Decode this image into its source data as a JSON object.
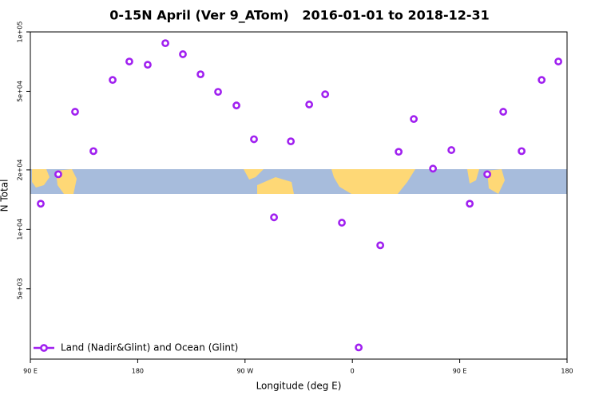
{
  "chart_data": {
    "type": "scatter",
    "title": "0-15N April (Ver 9_ATom)   2016-01-01 to 2018-12-31",
    "x_label": "Longitude (deg E)",
    "y_label": "N Total",
    "log_y": true,
    "legend": "bottom-left",
    "xlim": [
      90,
      540
    ],
    "xticks": [
      {
        "value": 90,
        "label": "90 E"
      },
      180,
      {
        "value": 270,
        "label": "90 W"
      },
      {
        "value": 360,
        "label": "0"
      },
      {
        "value": 450,
        "label": "90 E"
      },
      {
        "value": 540,
        "label": "180"
      }
    ],
    "ylim": [
      2200,
      100000
    ],
    "yticks": [
      {
        "value": 5000,
        "label": "5e+03"
      },
      {
        "value": 10000,
        "label": "1e+04"
      },
      {
        "value": 20000,
        "label": "2e+04"
      },
      {
        "value": 50000,
        "label": "5e+04"
      },
      {
        "value": 100000,
        "label": "1e+05"
      }
    ],
    "series": [
      {
        "name": "Land (Nadir&Glint) and Ocean (Glint)",
        "color": "#a020f0",
        "x": [
          98.7,
          113.4,
          127.5,
          142.9,
          159,
          173,
          188.4,
          203.2,
          217.9,
          232.7,
          247.4,
          262.8,
          277.5,
          294.3,
          308.4,
          323.8,
          337.2,
          351.2,
          365.3,
          383.4,
          398.8,
          411.5,
          427.6,
          443,
          458.4,
          473.1,
          486.5,
          501.9,
          518.7,
          532.7
        ],
        "values": [
          13480,
          19000,
          39400,
          24900,
          57100,
          70800,
          68200,
          87700,
          77100,
          61000,
          49700,
          42400,
          28600,
          11500,
          27900,
          42900,
          48300,
          10800,
          2520,
          8300,
          24700,
          36200,
          20300,
          25200,
          13480,
          19000,
          39400,
          24900,
          57100,
          70800
        ]
      }
    ]
  }
}
